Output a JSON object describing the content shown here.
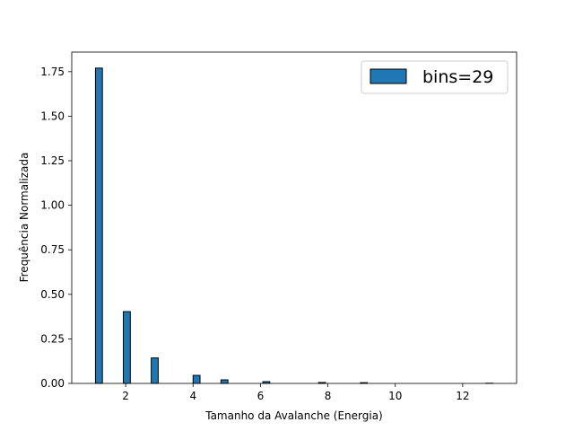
{
  "chart_data": {
    "type": "bar",
    "title": "",
    "xlabel": "Tamanho da Avalanche (Energia)",
    "ylabel": "Frequência Normalizada",
    "xlim": [
      0.4,
      13.6
    ],
    "ylim": [
      0,
      1.86
    ],
    "x_ticks": [
      2,
      4,
      6,
      8,
      10,
      12
    ],
    "x_tick_labels": [
      "2",
      "4",
      "6",
      "8",
      "10",
      "12"
    ],
    "y_ticks": [
      0,
      0.25,
      0.5,
      0.75,
      1.0,
      1.25,
      1.5,
      1.75
    ],
    "y_tick_labels": [
      "0.00",
      "0.25",
      "0.50",
      "0.75",
      "1.00",
      "1.25",
      "1.50",
      "1.75"
    ],
    "grid": false,
    "legend": {
      "position": "top-right",
      "entries": [
        "bins=29"
      ]
    },
    "series": [
      {
        "name": "bins=29",
        "color": "#1f77b4",
        "edge_color": "#000000",
        "bin_width": 0.4138,
        "x": [
          1.0,
          1.4138,
          1.8276,
          2.2414,
          2.6552,
          3.069,
          3.4828,
          3.8966,
          4.3103,
          4.7241,
          5.1379,
          5.5517,
          5.9655,
          6.3793,
          6.7931,
          7.2069,
          7.6207,
          8.0345,
          8.4483,
          8.8621,
          9.2759,
          9.6897,
          10.1034,
          10.5172,
          10.931,
          11.3448,
          11.7586,
          12.1724,
          12.5862
        ],
        "values": [
          1.77,
          0,
          0.403,
          0,
          0.143,
          0,
          0,
          0.045,
          0,
          0.02,
          0,
          0,
          0.01,
          0,
          0,
          0,
          0.005,
          0,
          0,
          0.004,
          0,
          0,
          0,
          0,
          0,
          0,
          0,
          0,
          0.001
        ]
      }
    ]
  }
}
